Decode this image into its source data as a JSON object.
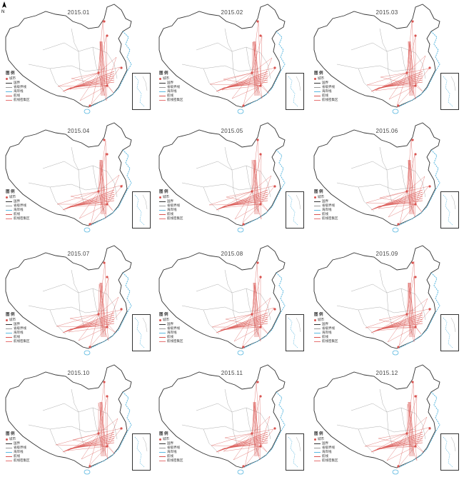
{
  "panels": [
    {
      "title": "2015.01"
    },
    {
      "title": "2015.02"
    },
    {
      "title": "2015.03"
    },
    {
      "title": "2015.04"
    },
    {
      "title": "2015.05"
    },
    {
      "title": "2015.06"
    },
    {
      "title": "2015.07"
    },
    {
      "title": "2015.08"
    },
    {
      "title": "2015.09"
    },
    {
      "title": "2015.10"
    },
    {
      "title": "2015.11"
    },
    {
      "title": "2015.12"
    }
  ],
  "legend": {
    "title": "图 例",
    "items": [
      "城市",
      "国界",
      "省级界线",
      "海岸线",
      "航线",
      "航线密集区"
    ]
  },
  "compass": "N",
  "colors": {
    "route": "#d9534f",
    "coast": "#5bb8e0",
    "border": "#333333",
    "province": "#999999"
  }
}
